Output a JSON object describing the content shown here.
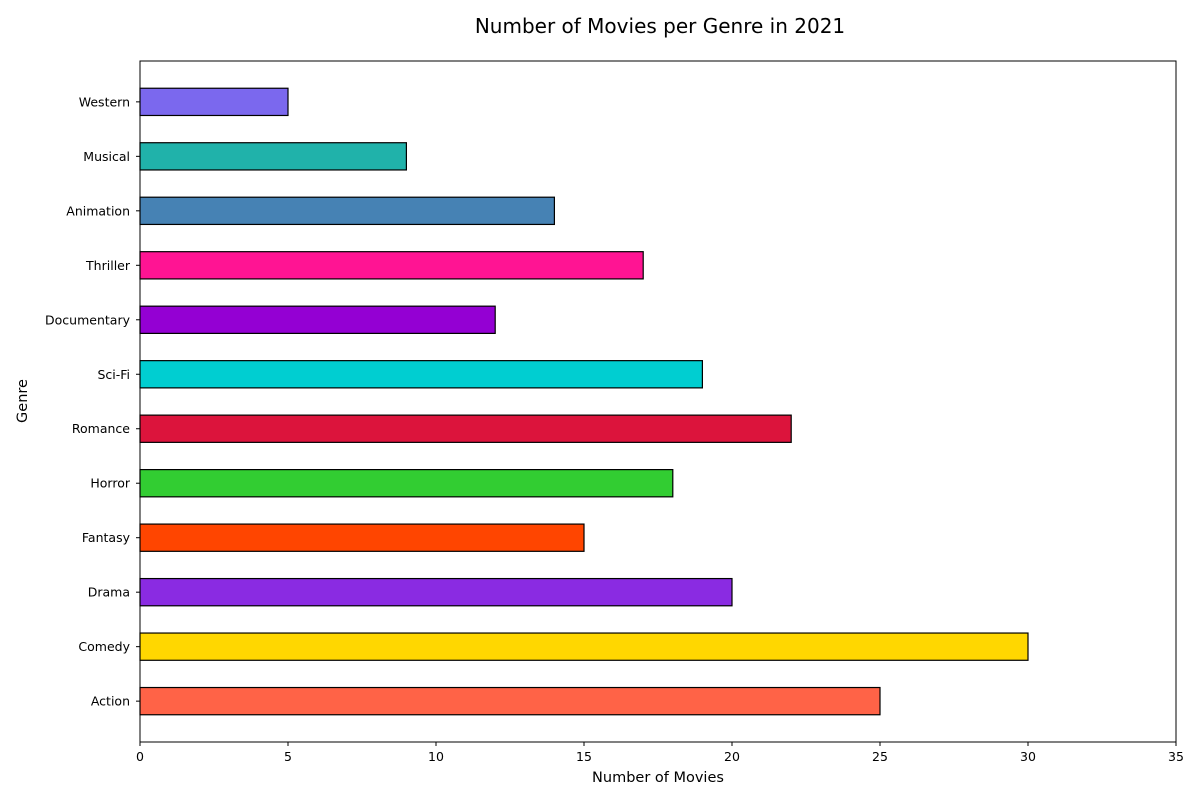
{
  "chart_data": {
    "type": "bar",
    "orientation": "horizontal",
    "title": "Number of Movies per Genre in 2021",
    "xlabel": "Number of Movies",
    "ylabel": "Genre",
    "xlim": [
      0,
      35
    ],
    "xticks": [
      0,
      5,
      10,
      15,
      20,
      25,
      30,
      35
    ],
    "grid": false,
    "legend": "none",
    "categories": [
      "Action",
      "Comedy",
      "Drama",
      "Fantasy",
      "Horror",
      "Romance",
      "Sci-Fi",
      "Documentary",
      "Thriller",
      "Animation",
      "Musical",
      "Western"
    ],
    "values": [
      25,
      30,
      20,
      15,
      18,
      22,
      19,
      12,
      17,
      14,
      9,
      5
    ],
    "colors": [
      "#FF6347",
      "#FFD700",
      "#8A2BE2",
      "#FF4500",
      "#32CD32",
      "#DC143C",
      "#00CED1",
      "#9400D3",
      "#FF1493",
      "#4682B4",
      "#20B2AA",
      "#7B68EE"
    ],
    "bar_edge_color": "#000000"
  }
}
